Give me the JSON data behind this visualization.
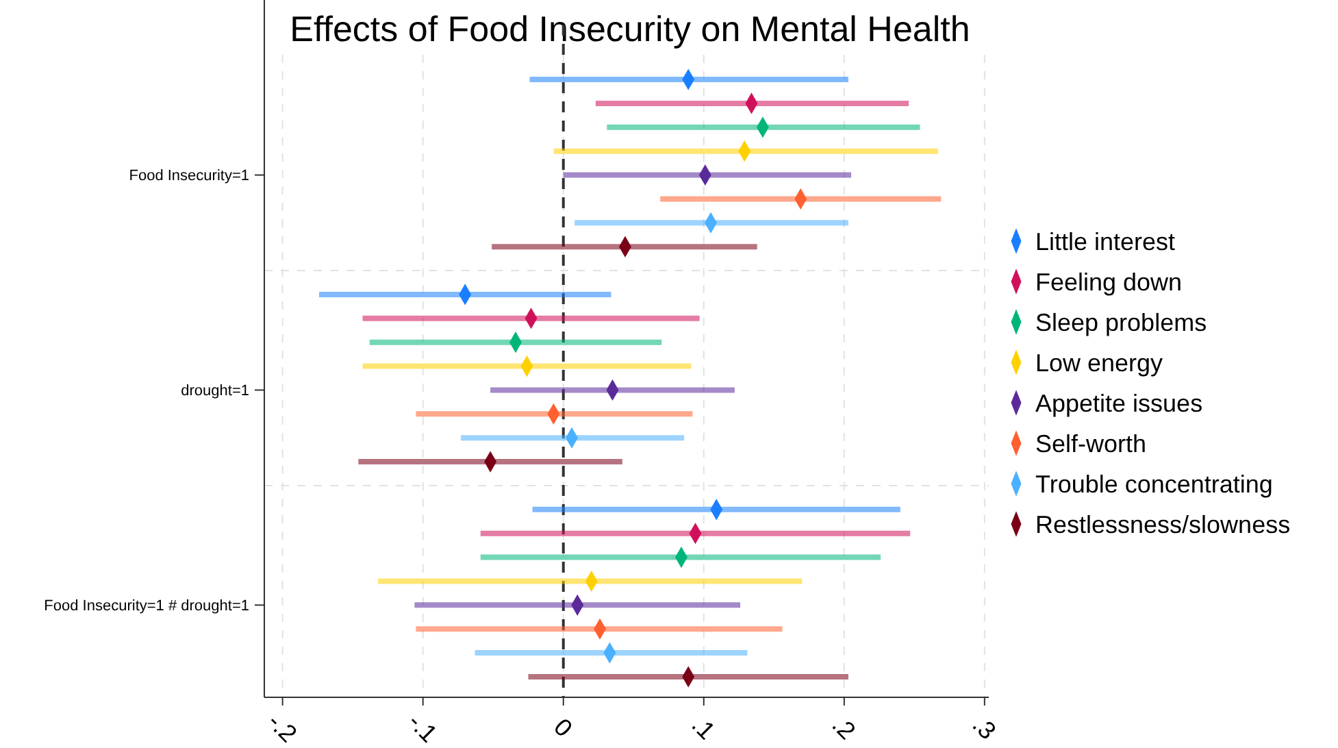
{
  "chart_data": {
    "type": "scatter",
    "title": "Effects of Food Insecurity on Mental Health",
    "orientation": "horizontal",
    "categories": [
      null,
      null,
      null,
      null,
      "Food Insecurity=1",
      null,
      null,
      null,
      null,
      null,
      null,
      null,
      null,
      "drought=1",
      null,
      null,
      null,
      null,
      null,
      null,
      null,
      null,
      "Food Insecurity=1 # drought=1",
      null,
      null,
      null
    ],
    "xlim": [
      -0.213,
      0.303
    ],
    "xticks": [
      {
        "value": -0.2,
        "label": "-.2"
      },
      {
        "value": -0.1,
        "label": "-.1"
      },
      {
        "value": 0,
        "label": "0"
      },
      {
        "value": 0.1,
        "label": ".1"
      },
      {
        "value": 0.2,
        "label": ".2"
      },
      {
        "value": 0.3,
        "label": ".3"
      }
    ],
    "grid": true,
    "legend": "right",
    "marker": "diamond",
    "ref_lines": [
      {
        "axis": "x",
        "value": 0,
        "line_style": "dashed",
        "color": "#333333"
      }
    ],
    "series": [
      {
        "name": "Little interest",
        "color": "#1a7fff",
        "values": [
          0.089,
          null,
          null,
          null,
          null,
          null,
          null,
          null,
          null,
          -0.07,
          null,
          null,
          null,
          null,
          null,
          null,
          null,
          null,
          0.109,
          null,
          null,
          null,
          null,
          null,
          null,
          null
        ],
        "errors": [
          [
            -0.024,
            0.203
          ],
          null,
          null,
          null,
          null,
          null,
          null,
          null,
          null,
          [
            -0.174,
            0.034
          ],
          null,
          null,
          null,
          null,
          null,
          null,
          null,
          null,
          [
            -0.022,
            0.24
          ],
          null,
          null,
          null,
          null,
          null,
          null,
          null
        ]
      },
      {
        "name": "Feeling down",
        "color": "#d0105a",
        "values": [
          null,
          0.134,
          null,
          null,
          null,
          null,
          null,
          null,
          null,
          null,
          -0.023,
          null,
          null,
          null,
          null,
          null,
          null,
          null,
          null,
          0.094,
          null,
          null,
          null,
          null,
          null,
          null
        ],
        "errors": [
          null,
          [
            0.023,
            0.246
          ],
          null,
          null,
          null,
          null,
          null,
          null,
          null,
          null,
          [
            -0.143,
            0.097
          ],
          null,
          null,
          null,
          null,
          null,
          null,
          null,
          null,
          [
            -0.059,
            0.247
          ],
          null,
          null,
          null,
          null,
          null,
          null
        ]
      },
      {
        "name": "Sleep problems",
        "color": "#00b57a",
        "values": [
          null,
          null,
          0.142,
          null,
          null,
          null,
          null,
          null,
          null,
          null,
          null,
          -0.034,
          null,
          null,
          null,
          null,
          null,
          null,
          null,
          null,
          0.084,
          null,
          null,
          null,
          null,
          null
        ],
        "errors": [
          null,
          null,
          [
            0.031,
            0.254
          ],
          null,
          null,
          null,
          null,
          null,
          null,
          null,
          null,
          [
            -0.138,
            0.07
          ],
          null,
          null,
          null,
          null,
          null,
          null,
          null,
          null,
          [
            -0.059,
            0.226
          ],
          null,
          null,
          null,
          null,
          null
        ]
      },
      {
        "name": "Low energy",
        "color": "#ffd000",
        "values": [
          null,
          null,
          null,
          0.129,
          null,
          null,
          null,
          null,
          null,
          null,
          null,
          null,
          -0.026,
          null,
          null,
          null,
          null,
          null,
          null,
          null,
          null,
          0.02,
          null,
          null,
          null,
          null
        ],
        "errors": [
          null,
          null,
          null,
          [
            -0.007,
            0.267
          ],
          null,
          null,
          null,
          null,
          null,
          null,
          null,
          null,
          [
            -0.143,
            0.091
          ],
          null,
          null,
          null,
          null,
          null,
          null,
          null,
          null,
          [
            -0.132,
            0.17
          ],
          null,
          null,
          null,
          null
        ]
      },
      {
        "name": "Appetite issues",
        "color": "#5a2a9a",
        "values": [
          null,
          null,
          null,
          null,
          0.101,
          null,
          null,
          null,
          null,
          null,
          null,
          null,
          null,
          0.035,
          null,
          null,
          null,
          null,
          null,
          null,
          null,
          null,
          0.01,
          null,
          null,
          null
        ],
        "errors": [
          null,
          null,
          null,
          null,
          [
            0.0,
            0.205
          ],
          null,
          null,
          null,
          null,
          null,
          null,
          null,
          null,
          [
            -0.052,
            0.122
          ],
          null,
          null,
          null,
          null,
          null,
          null,
          null,
          null,
          [
            -0.106,
            0.126
          ],
          null,
          null,
          null
        ]
      },
      {
        "name": "Self-worth",
        "color": "#ff6030",
        "values": [
          null,
          null,
          null,
          null,
          null,
          0.169,
          null,
          null,
          null,
          null,
          null,
          null,
          null,
          null,
          -0.007,
          null,
          null,
          null,
          null,
          null,
          null,
          null,
          null,
          0.026,
          null,
          null
        ],
        "errors": [
          null,
          null,
          null,
          null,
          null,
          [
            0.069,
            0.269
          ],
          null,
          null,
          null,
          null,
          null,
          null,
          null,
          null,
          [
            -0.105,
            0.092
          ],
          null,
          null,
          null,
          null,
          null,
          null,
          null,
          null,
          [
            -0.105,
            0.156
          ],
          null,
          null
        ]
      },
      {
        "name": "Trouble concentrating",
        "color": "#4ab0ff",
        "values": [
          null,
          null,
          null,
          null,
          null,
          null,
          0.105,
          null,
          null,
          null,
          null,
          null,
          null,
          null,
          null,
          0.006,
          null,
          null,
          null,
          null,
          null,
          null,
          null,
          null,
          0.033,
          null
        ],
        "errors": [
          null,
          null,
          null,
          null,
          null,
          null,
          [
            0.008,
            0.203
          ],
          null,
          null,
          null,
          null,
          null,
          null,
          null,
          null,
          [
            -0.073,
            0.086
          ],
          null,
          null,
          null,
          null,
          null,
          null,
          null,
          null,
          [
            -0.063,
            0.131
          ],
          null
        ]
      },
      {
        "name": "Restlessness/slowness",
        "color": "#7a0018",
        "values": [
          null,
          null,
          null,
          null,
          null,
          null,
          null,
          0.044,
          null,
          null,
          null,
          null,
          null,
          null,
          null,
          null,
          -0.052,
          null,
          null,
          null,
          null,
          null,
          null,
          null,
          null,
          0.089
        ],
        "errors": [
          null,
          null,
          null,
          null,
          null,
          null,
          null,
          [
            -0.051,
            0.138
          ],
          null,
          null,
          null,
          null,
          null,
          null,
          null,
          null,
          [
            -0.146,
            0.042
          ],
          null,
          null,
          null,
          null,
          null,
          null,
          null,
          null,
          [
            -0.025,
            0.203
          ]
        ]
      }
    ]
  }
}
